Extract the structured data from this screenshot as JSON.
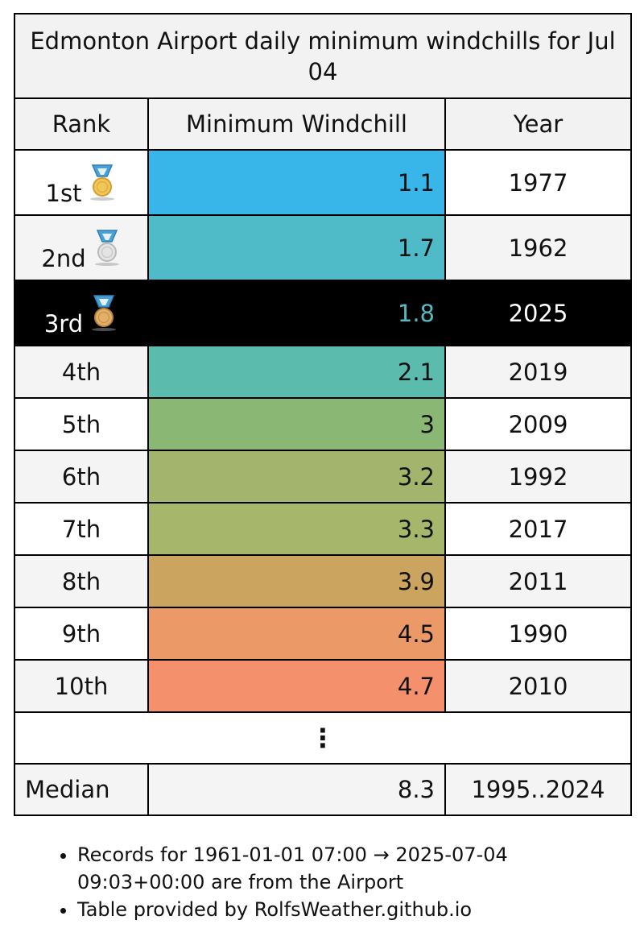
{
  "title": "Edmonton Airport daily minimum windchills for Jul 04",
  "headers": {
    "rank": "Rank",
    "value": "Minimum Windchill",
    "year": "Year"
  },
  "rows": [
    {
      "rank": "1st",
      "value": "1.1",
      "year": "1977",
      "color": "#38b6ea",
      "medal": "gold"
    },
    {
      "rank": "2nd",
      "value": "1.7",
      "year": "1962",
      "color": "#4fbac8",
      "medal": "silver"
    },
    {
      "rank": "3rd",
      "value": "1.8",
      "year": "2025",
      "color": "#000000",
      "medal": "bronze",
      "current": true
    },
    {
      "rank": "4th",
      "value": "2.1",
      "year": "2019",
      "color": "#5bbbad"
    },
    {
      "rank": "5th",
      "value": "3",
      "year": "2009",
      "color": "#8ab774"
    },
    {
      "rank": "6th",
      "value": "3.2",
      "year": "1992",
      "color": "#a3b46c"
    },
    {
      "rank": "7th",
      "value": "3.3",
      "year": "2017",
      "color": "#a6b66a"
    },
    {
      "rank": "8th",
      "value": "3.9",
      "year": "2011",
      "color": "#cba55f"
    },
    {
      "rank": "9th",
      "value": "4.5",
      "year": "1990",
      "color": "#eb9a67"
    },
    {
      "rank": "10th",
      "value": "4.7",
      "year": "2010",
      "color": "#f5906c"
    }
  ],
  "ellipsis": "⋮",
  "median": {
    "label": "Median",
    "value": "8.3",
    "years": "1995..2024"
  },
  "notes": [
    "Records for 1961-01-01 07:00 → 2025-07-04 09:03+00:00 are from the Airport",
    "Table provided by RolfsWeather.github.io"
  ]
}
